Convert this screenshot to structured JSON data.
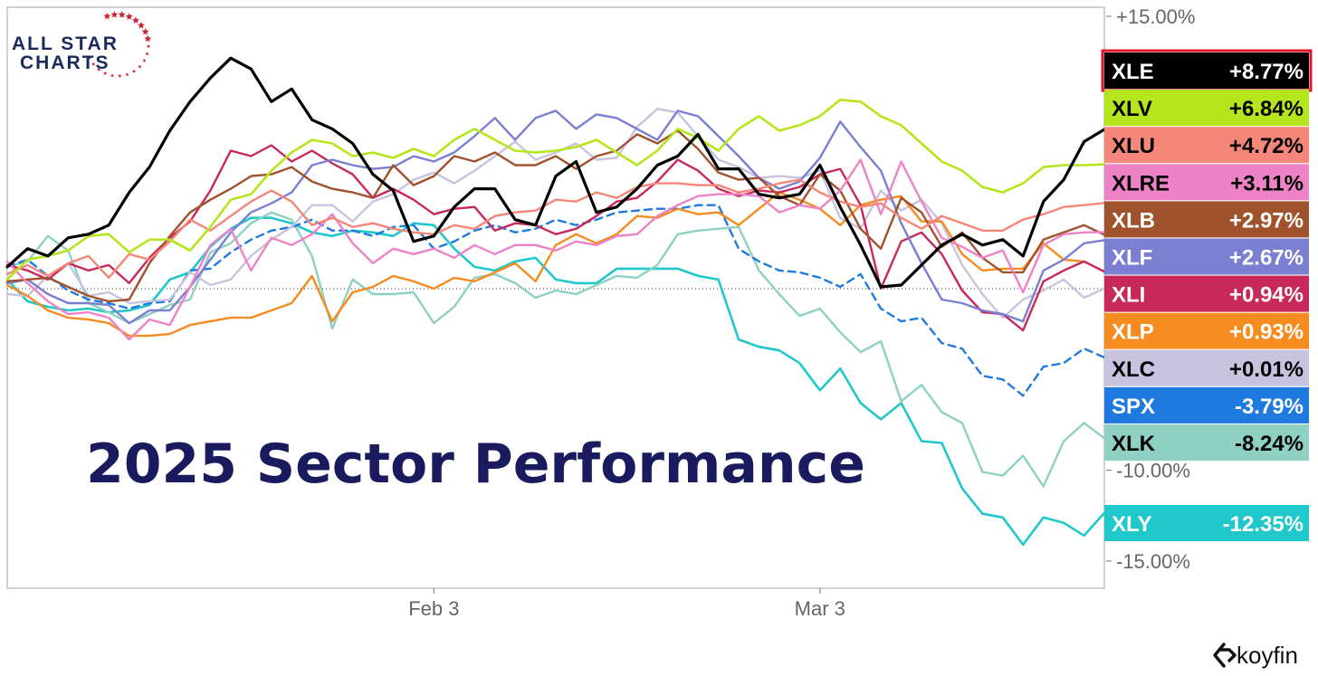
{
  "brand": {
    "line1": "ALL STAR",
    "line2": "CHARTS",
    "star_color": "#d0202e",
    "text_color": "#1b2a5c"
  },
  "title": "2025 Sector Performance",
  "source": {
    "name": "koyfin"
  },
  "chart_data": {
    "type": "line",
    "title": "2025 Sector Performance",
    "x_tick_labels": [
      "Feb 3",
      "Mar 3"
    ],
    "x_tick_index": [
      21,
      40
    ],
    "y_tick_labels": [
      "+15.00%",
      "-10.00%",
      "-15.00%"
    ],
    "ylim": [
      -16.5,
      15.5
    ],
    "y_unit": "%",
    "zero_line": true,
    "grid": false,
    "legend_position": "right",
    "series": [
      {
        "name": "XLE",
        "label": "+8.77%",
        "last": 8.77,
        "color": "#000000",
        "text_color": "#ffffff",
        "highlight": true,
        "width": 3.2,
        "dashed": false,
        "values": [
          1.2,
          2.2,
          1.8,
          2.8,
          3.0,
          3.5,
          5.3,
          6.7,
          8.7,
          10.3,
          11.6,
          12.7,
          12.1,
          10.3,
          11.0,
          9.3,
          8.8,
          8.0,
          6.3,
          5.4,
          2.6,
          2.9,
          4.5,
          5.5,
          5.5,
          3.8,
          3.5,
          6.2,
          7.0,
          4.2,
          4.5,
          5.5,
          6.8,
          7.3,
          8.5,
          6.6,
          6.6,
          5.2,
          5.0,
          5.2,
          6.8,
          4.5,
          2.4,
          0.1,
          0.2,
          1.3,
          2.4,
          3.0,
          2.4,
          2.7,
          1.8,
          4.8,
          6.0,
          8.1,
          8.77
        ]
      },
      {
        "name": "XLV",
        "label": "+6.84%",
        "last": 6.84,
        "color": "#b5e61d",
        "text_color": "#000000",
        "highlight": false,
        "width": 2.6,
        "dashed": false,
        "values": [
          0.5,
          1.6,
          1.8,
          2.1,
          2.9,
          3.0,
          2.0,
          2.7,
          2.7,
          2.1,
          3.4,
          4.9,
          5.2,
          6.5,
          7.5,
          8.2,
          8.0,
          7.3,
          7.5,
          7.2,
          7.7,
          7.3,
          8.2,
          8.8,
          8.2,
          7.6,
          7.5,
          7.6,
          7.8,
          8.2,
          7.5,
          6.8,
          7.6,
          8.8,
          8.3,
          7.6,
          8.8,
          9.5,
          8.7,
          9.0,
          9.5,
          10.4,
          10.3,
          9.5,
          9.0,
          8.0,
          7.0,
          6.5,
          5.6,
          5.3,
          5.8,
          6.7,
          6.8,
          6.8,
          6.84
        ]
      },
      {
        "name": "XLU",
        "label": "+4.72%",
        "last": 4.72,
        "color": "#f4877a",
        "text_color": "#000000",
        "highlight": false,
        "width": 2.4,
        "dashed": false,
        "values": [
          0.8,
          1.3,
          0.7,
          1.4,
          1.8,
          0.6,
          1.9,
          1.6,
          2.6,
          3.8,
          3.2,
          4.0,
          4.8,
          5.4,
          4.8,
          3.5,
          3.9,
          3.4,
          3.6,
          3.3,
          3.1,
          3.0,
          3.5,
          3.3,
          4.0,
          4.2,
          4.3,
          4.9,
          4.8,
          5.3,
          5.0,
          5.6,
          5.8,
          5.8,
          5.7,
          5.7,
          5.3,
          5.5,
          5.8,
          6.0,
          5.3,
          4.8,
          4.5,
          4.7,
          3.9,
          3.3,
          4.0,
          3.6,
          3.2,
          3.2,
          3.8,
          4.1,
          4.5,
          4.6,
          4.72
        ]
      },
      {
        "name": "XLRE",
        "label": "+3.11%",
        "last": 3.11,
        "color": "#ee82c7",
        "text_color": "#000000",
        "highlight": false,
        "width": 2.4,
        "dashed": false,
        "values": [
          1.5,
          0.3,
          -0.7,
          -1.4,
          -1.3,
          -1.6,
          -2.8,
          -1.7,
          -2.0,
          0.1,
          2.4,
          3.3,
          1.0,
          2.8,
          2.4,
          3.0,
          4.1,
          2.5,
          1.4,
          2.2,
          1.9,
          2.2,
          1.7,
          2.4,
          1.9,
          2.4,
          2.4,
          2.1,
          2.6,
          2.4,
          2.9,
          3.0,
          4.0,
          4.6,
          5.1,
          5.2,
          5.2,
          5.1,
          4.2,
          4.6,
          4.4,
          5.4,
          7.1,
          4.1,
          7.0,
          4.8,
          2.8,
          2.3,
          1.7,
          2.1,
          -0.2,
          2.4,
          3.0,
          3.1,
          3.11
        ]
      },
      {
        "name": "XLB",
        "label": "+2.97%",
        "last": 2.97,
        "color": "#a0522d",
        "text_color": "#ffffff",
        "highlight": false,
        "width": 2.4,
        "dashed": false,
        "values": [
          0.4,
          0.5,
          0.6,
          0.1,
          -0.4,
          -0.7,
          -0.6,
          1.4,
          2.9,
          4.2,
          4.9,
          5.5,
          6.2,
          6.3,
          6.7,
          5.9,
          5.5,
          5.3,
          5.0,
          6.8,
          5.7,
          6.2,
          7.3,
          7.0,
          7.5,
          6.8,
          6.8,
          7.3,
          6.6,
          7.3,
          7.6,
          8.5,
          8.0,
          8.7,
          7.7,
          6.4,
          6.0,
          6.1,
          5.1,
          4.6,
          6.3,
          5.4,
          3.3,
          2.2,
          5.0,
          4.2,
          2.3,
          3.1,
          1.7,
          0.9,
          0.9,
          2.7,
          3.1,
          3.5,
          2.97
        ]
      },
      {
        "name": "XLF",
        "label": "+2.67%",
        "last": 2.67,
        "color": "#7b7fd1",
        "text_color": "#ffffff",
        "highlight": false,
        "width": 2.4,
        "dashed": false,
        "values": [
          0.3,
          0.5,
          -0.3,
          -0.8,
          -0.8,
          -0.9,
          -1.9,
          -1.2,
          -1.2,
          0.1,
          1.6,
          3.1,
          4.2,
          4.7,
          5.3,
          6.8,
          7.1,
          6.8,
          6.6,
          6.7,
          7.3,
          7.0,
          7.5,
          8.4,
          9.4,
          8.2,
          9.4,
          9.8,
          8.8,
          9.6,
          9.4,
          8.8,
          8.2,
          9.8,
          9.5,
          8.4,
          7.3,
          6.1,
          5.5,
          5.9,
          7.2,
          9.2,
          7.8,
          6.5,
          3.6,
          1.4,
          -0.6,
          -0.8,
          -1.2,
          -1.4,
          -1.8,
          1.0,
          1.6,
          2.5,
          2.67
        ]
      },
      {
        "name": "XLI",
        "label": "+0.94%",
        "last": 0.94,
        "color": "#c8285a",
        "text_color": "#ffffff",
        "highlight": false,
        "width": 2.4,
        "dashed": false,
        "values": [
          1.3,
          1.0,
          0.5,
          1.4,
          1.0,
          1.3,
          0.3,
          1.7,
          2.8,
          3.7,
          5.4,
          7.6,
          7.3,
          7.9,
          7.0,
          7.6,
          6.9,
          6.3,
          5.0,
          5.5,
          4.9,
          4.1,
          4.4,
          4.5,
          3.2,
          3.6,
          3.5,
          3.0,
          3.3,
          4.0,
          4.8,
          5.0,
          5.9,
          7.1,
          6.5,
          5.5,
          5.1,
          5.4,
          5.3,
          5.6,
          6.3,
          6.6,
          4.6,
          0.0,
          2.6,
          3.1,
          1.9,
          -0.1,
          -1.3,
          -1.4,
          -2.3,
          0.4,
          1.0,
          1.5,
          0.94
        ]
      },
      {
        "name": "XLP",
        "label": "+0.93%",
        "last": 0.93,
        "color": "#f68b1f",
        "text_color": "#ffffff",
        "highlight": false,
        "width": 2.4,
        "dashed": false,
        "values": [
          0.2,
          -0.4,
          -1.2,
          -1.6,
          -1.7,
          -1.9,
          -2.6,
          -2.6,
          -2.5,
          -2.0,
          -1.8,
          -1.6,
          -1.6,
          -1.2,
          -0.8,
          0.7,
          -1.8,
          -0.2,
          0.1,
          0.7,
          0.4,
          0.0,
          0.6,
          0.4,
          0.9,
          1.4,
          0.4,
          2.4,
          3.0,
          2.5,
          3.0,
          4.0,
          3.9,
          4.4,
          4.1,
          4.2,
          3.5,
          4.4,
          5.3,
          4.9,
          4.4,
          3.5,
          4.6,
          4.9,
          5.1,
          3.7,
          3.7,
          1.9,
          1.0,
          1.1,
          1.1,
          2.5,
          1.6,
          1.5,
          0.93
        ]
      },
      {
        "name": "XLC",
        "label": "+0.01%",
        "last": 0.01,
        "color": "#c8c3df",
        "text_color": "#000000",
        "highlight": false,
        "width": 2.4,
        "dashed": false,
        "values": [
          -0.3,
          -0.4,
          0.7,
          1.4,
          -0.4,
          -0.2,
          -0.8,
          -0.7,
          -0.6,
          0.9,
          0.2,
          0.5,
          1.8,
          2.7,
          3.4,
          4.6,
          4.6,
          3.7,
          4.8,
          5.2,
          6.0,
          6.4,
          5.8,
          6.5,
          7.3,
          8.1,
          7.1,
          7.5,
          8.0,
          7.1,
          7.2,
          8.9,
          9.9,
          9.7,
          8.4,
          7.1,
          6.7,
          6.1,
          6.2,
          6.1,
          6.5,
          3.9,
          3.3,
          5.4,
          4.3,
          4.9,
          3.6,
          1.3,
          -0.3,
          -1.6,
          -0.6,
          -0.1,
          0.5,
          -0.5,
          0.01
        ]
      },
      {
        "name": "SPX",
        "label": "-3.79%",
        "last": -3.79,
        "color": "#1f7ae0",
        "text_color": "#ffffff",
        "highlight": false,
        "width": 2.4,
        "dashed": true,
        "values": [
          1.2,
          1.6,
          0.7,
          -0.1,
          -0.6,
          -0.8,
          -1.1,
          -0.8,
          -0.7,
          1.0,
          1.1,
          2.0,
          2.7,
          3.2,
          3.4,
          3.8,
          3.2,
          3.2,
          2.9,
          3.4,
          3.5,
          2.2,
          2.6,
          3.2,
          3.5,
          3.1,
          3.3,
          3.8,
          3.5,
          3.8,
          4.2,
          4.3,
          4.4,
          4.4,
          4.6,
          4.6,
          2.2,
          1.5,
          1.0,
          0.9,
          0.6,
          0.1,
          0.8,
          -1.1,
          -1.8,
          -1.6,
          -3.0,
          -3.3,
          -4.8,
          -5.0,
          -5.9,
          -4.3,
          -4.1,
          -3.3,
          -3.79
        ]
      },
      {
        "name": "XLK",
        "label": "-8.24%",
        "last": -8.24,
        "color": "#8ed1c3",
        "text_color": "#000000",
        "highlight": false,
        "width": 2.4,
        "dashed": false,
        "values": [
          1.2,
          1.5,
          2.9,
          2.1,
          -0.8,
          -1.3,
          -1.9,
          -1.4,
          -0.9,
          -0.6,
          2.0,
          2.5,
          3.6,
          4.2,
          3.8,
          1.8,
          -2.2,
          0.5,
          -0.3,
          -0.3,
          -0.2,
          -1.9,
          -1.0,
          0.6,
          0.8,
          0.3,
          -0.5,
          -0.1,
          -0.3,
          0.2,
          0.7,
          0.6,
          1.3,
          3.0,
          3.2,
          3.3,
          3.4,
          1.0,
          -0.3,
          -1.5,
          -1.1,
          -2.4,
          -3.5,
          -2.9,
          -6.2,
          -5.3,
          -6.8,
          -7.4,
          -10.1,
          -10.3,
          -9.2,
          -10.9,
          -8.4,
          -7.4,
          -8.24
        ]
      },
      {
        "name": "XLY",
        "label": "-12.35%",
        "last": -12.35,
        "color": "#20c8cc",
        "text_color": "#ffffff",
        "highlight": false,
        "width": 2.6,
        "dashed": false,
        "values": [
          0.5,
          -0.7,
          -1.0,
          -1.2,
          -1.1,
          -1.3,
          -1.2,
          -0.9,
          0.5,
          0.9,
          2.3,
          3.3,
          3.9,
          3.9,
          3.6,
          3.1,
          2.9,
          3.2,
          3.1,
          2.9,
          3.6,
          3.5,
          2.2,
          1.2,
          1.0,
          1.5,
          1.7,
          0.5,
          0.3,
          0.3,
          1.1,
          1.1,
          1.1,
          1.1,
          0.7,
          0.5,
          -2.8,
          -3.2,
          -3.4,
          -4.1,
          -5.6,
          -4.4,
          -6.3,
          -7.2,
          -6.3,
          -8.4,
          -8.5,
          -11.0,
          -12.4,
          -12.6,
          -14.1,
          -12.6,
          -12.9,
          -13.6,
          -12.35
        ]
      }
    ]
  }
}
